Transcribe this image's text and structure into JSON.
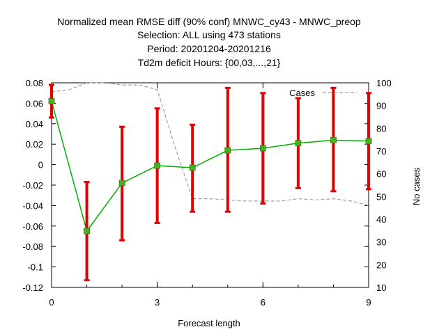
{
  "chart_data": {
    "type": "line",
    "title_lines": [
      "Normalized mean RMSE diff (90% conf) MNWC_cy43 - MNWC_preop",
      "Selection: ALL using   473 stations",
      "Period: 20201204-20201216",
      "Td2m deficit   Hours: {00,03,...,21}"
    ],
    "xlabel": "Forecast length",
    "y2label": "No cases",
    "xlim": [
      0,
      9
    ],
    "ylim": [
      -0.12,
      0.08
    ],
    "y2lim": [
      10,
      100
    ],
    "x_ticks": [
      0,
      3,
      6,
      9
    ],
    "y_ticks": [
      "0.08",
      "0.06",
      "0.04",
      "0.02",
      "0",
      "-0.02",
      "-0.04",
      "-0.06",
      "-0.08",
      "-0.1",
      "-0.12"
    ],
    "y2_ticks": [
      "100",
      "90",
      "80",
      "70",
      "60",
      "50",
      "40",
      "30",
      "20",
      "10"
    ],
    "grid": false,
    "legend": {
      "position": "top-right",
      "label": "Cases"
    },
    "series": [
      {
        "kind": "mean_with_errorbars",
        "color": "#00b000",
        "marker_color": "#4caf20",
        "errorbar_color": "#e00000",
        "x": [
          0,
          1,
          2,
          3,
          4,
          5,
          6,
          7,
          8,
          9
        ],
        "y": [
          0.062,
          -0.065,
          -0.018,
          -0.001,
          -0.003,
          0.014,
          0.016,
          0.021,
          0.024,
          0.023
        ],
        "lower": [
          0.046,
          -0.113,
          -0.074,
          -0.057,
          -0.046,
          -0.046,
          -0.038,
          -0.023,
          -0.026,
          -0.024
        ],
        "upper": [
          0.078,
          -0.017,
          0.037,
          0.055,
          0.039,
          0.075,
          0.07,
          0.065,
          0.075,
          0.07
        ]
      },
      {
        "name": "Cases",
        "axis": "y2",
        "color": "#a0a0a0",
        "dash": true,
        "x": [
          0,
          0.5,
          1,
          1.5,
          2,
          2.5,
          3,
          3.5,
          4,
          4.5,
          5,
          5.5,
          6,
          6.5,
          7,
          7.5,
          8,
          8.5,
          9
        ],
        "y": [
          96,
          97,
          100,
          100,
          99,
          99,
          97,
          72,
          49,
          49,
          48.5,
          48,
          48,
          48,
          49,
          48.5,
          49,
          48,
          46
        ]
      }
    ]
  }
}
